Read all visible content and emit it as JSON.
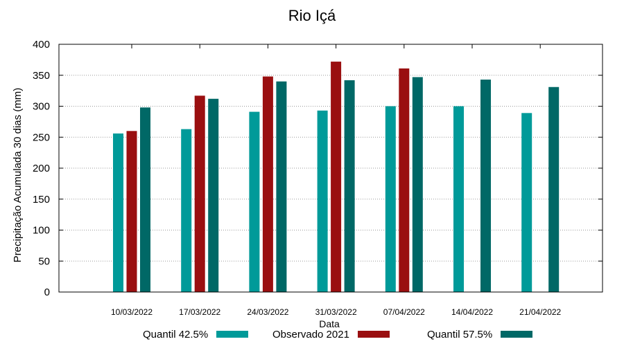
{
  "chart_data": {
    "type": "bar",
    "title": "Rio Içá",
    "xlabel": "Data",
    "ylabel": "Precipitação Acumulada 30 dias (mm)",
    "ylim": [
      0,
      400
    ],
    "yticks": [
      "0",
      "50",
      "100",
      "150",
      "200",
      "250",
      "300",
      "350",
      "400"
    ],
    "grid": true,
    "legend_position": "bottom",
    "categories": [
      "10/03/2022",
      "17/03/2022",
      "24/03/2022",
      "31/03/2022",
      "07/04/2022",
      "14/04/2022",
      "21/04/2022"
    ],
    "series": [
      {
        "name": "Quantil 42.5%",
        "color": "#009a99",
        "values": [
          256,
          263,
          291,
          293,
          300,
          300,
          289
        ]
      },
      {
        "name": "Observado 2021",
        "color": "#9a0f10",
        "values": [
          260,
          317,
          348,
          372,
          361,
          null,
          null
        ]
      },
      {
        "name": "Quantil 57.5%",
        "color": "#006866",
        "values": [
          298,
          312,
          340,
          342,
          347,
          343,
          331
        ]
      }
    ]
  }
}
